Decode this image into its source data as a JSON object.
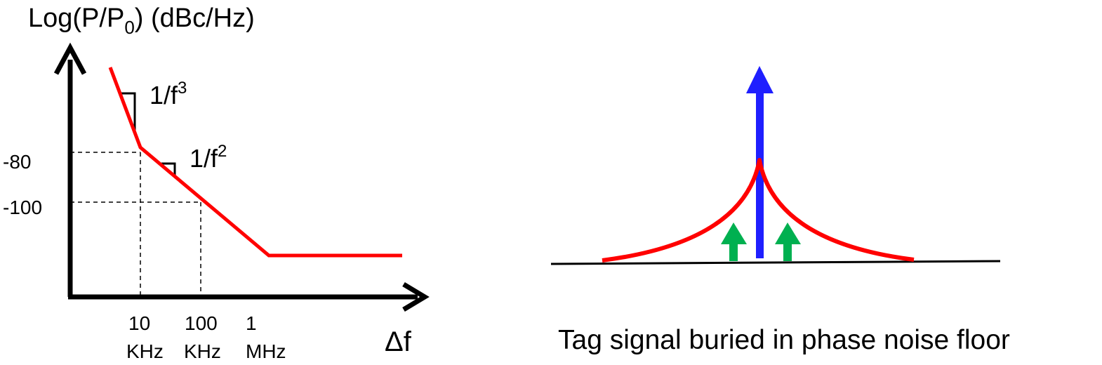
{
  "left_diagram": {
    "y_axis_title": {
      "prefix": "Log(P/P",
      "subscript": "0",
      "suffix": ")  (dBc/Hz)"
    },
    "x_axis_label": "Δf",
    "y_ticks": [
      "-80",
      "-100"
    ],
    "x_ticks": [
      {
        "line1": "10",
        "line2": "KHz"
      },
      {
        "line1": "100",
        "line2": "KHz"
      },
      {
        "line1": "1",
        "line2": "MHz"
      }
    ],
    "slope_labels": [
      {
        "base": "1/f",
        "exponent": "3"
      },
      {
        "base": "1/f",
        "exponent": "2"
      }
    ],
    "colors": {
      "axis": "#000000",
      "noise_curve": "#ff0000"
    }
  },
  "right_diagram": {
    "caption": "Tag signal buried in phase noise floor",
    "colors": {
      "carrier_arrow": "#1f1fff",
      "tag_arrows": "#00b050",
      "noise_skirt": "#ff0000",
      "floor_line": "#000000"
    }
  }
}
